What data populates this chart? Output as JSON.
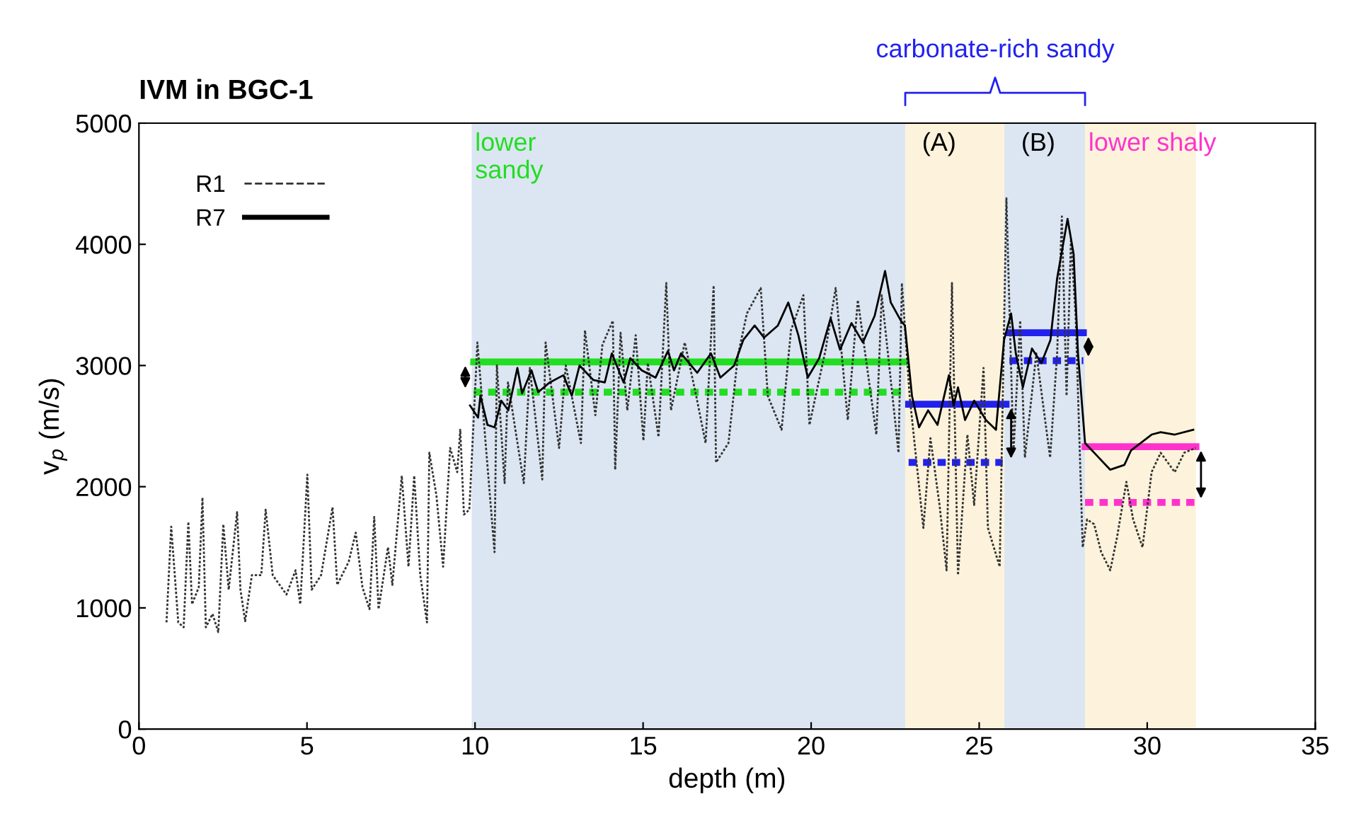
{
  "chart_data": {
    "type": "line",
    "title": "IVM in BGC-1",
    "xlabel": "depth (m)",
    "ylabel": "v$_{p}$ (m/s)",
    "xlim": [
      0,
      35
    ],
    "xticks": [
      0,
      5,
      10,
      15,
      20,
      25,
      30,
      35
    ],
    "ylim": [
      0,
      5000
    ],
    "yticks": [
      0,
      1000,
      2000,
      3000,
      4000,
      5000
    ],
    "grid": false,
    "legend": "top left",
    "marker": "none",
    "annotations": [
      "carbonate-rich sandy"
    ],
    "bands": [
      {
        "axis": "x",
        "from": 9.9,
        "to": 22.8,
        "label": "lower\nsandy",
        "color": "#dce6f2"
      },
      {
        "axis": "x",
        "from": 22.8,
        "to": 25.75,
        "label": "(A)",
        "color": "#fdf3dc"
      },
      {
        "axis": "x",
        "from": 25.75,
        "to": 28.15,
        "label": "(B)",
        "color": "#dce6f2"
      },
      {
        "axis": "x",
        "from": 28.15,
        "to": 31.45,
        "label": "lower shaly",
        "color": "#fdf3dc"
      }
    ],
    "series": [
      {
        "name": "R1",
        "color": "#333333",
        "line_style": "dotted",
        "x": [
          0.82,
          0.96,
          1.17,
          1.33,
          1.47,
          1.58,
          1.78,
          1.89,
          1.99,
          2.19,
          2.36,
          2.51,
          2.67,
          2.92,
          3.02,
          3.16,
          3.36,
          3.64,
          3.77,
          3.98,
          4.39,
          4.66,
          4.8,
          5.01,
          5.14,
          5.42,
          5.76,
          5.9,
          6.24,
          6.45,
          6.65,
          6.86,
          7.0,
          7.13,
          7.41,
          7.54,
          7.82,
          8.02,
          8.19,
          8.37,
          8.57,
          8.64,
          8.85,
          9.05,
          9.26,
          9.47,
          9.56,
          9.67,
          9.83,
          10.07,
          10.58,
          10.65,
          10.88,
          10.98,
          11.45,
          11.63,
          12.0,
          12.1,
          12.5,
          12.7,
          13.15,
          13.27,
          13.58,
          13.79,
          14.1,
          14.17,
          14.33,
          14.53,
          14.78,
          15.01,
          15.14,
          15.46,
          15.69,
          15.83,
          16.24,
          16.58,
          16.86,
          17.1,
          17.17,
          17.54,
          17.82,
          18.09,
          18.5,
          18.71,
          19.12,
          19.4,
          19.77,
          19.95,
          20.43,
          20.73,
          21.09,
          21.39,
          21.94,
          22.1,
          22.6,
          22.7,
          22.93,
          23.34,
          23.55,
          23.82,
          24.03,
          24.19,
          24.37,
          24.65,
          24.85,
          25.13,
          25.26,
          25.61,
          25.81,
          26.02,
          26.22,
          26.36,
          26.7,
          27.11,
          27.32,
          27.46,
          27.6,
          27.73,
          27.87,
          28.08,
          28.21,
          28.42,
          28.63,
          28.9,
          29.1,
          29.38,
          29.58,
          29.86,
          30.13,
          30.4,
          30.82,
          31.1,
          31.44
        ],
        "values": [
          880,
          1670,
          880,
          840,
          1710,
          1030,
          1170,
          1910,
          840,
          950,
          800,
          1690,
          1150,
          1790,
          1150,
          890,
          1270,
          1270,
          1810,
          1270,
          1110,
          1310,
          1030,
          2100,
          1150,
          1270,
          1830,
          1190,
          1380,
          1620,
          1170,
          990,
          1750,
          990,
          1500,
          1190,
          2090,
          1340,
          2090,
          1270,
          880,
          2280,
          1930,
          1340,
          2320,
          2120,
          2470,
          1770,
          1810,
          3190,
          1460,
          3000,
          2030,
          2860,
          2030,
          2980,
          2060,
          3190,
          2320,
          3000,
          2360,
          3290,
          2590,
          3170,
          3370,
          2140,
          3270,
          2630,
          3250,
          2380,
          3020,
          2410,
          3680,
          2630,
          3190,
          2750,
          2360,
          3660,
          2200,
          2360,
          3080,
          3430,
          3640,
          2750,
          2470,
          3290,
          3580,
          2510,
          3130,
          3640,
          2550,
          3540,
          2430,
          3580,
          2280,
          3680,
          2750,
          1660,
          2400,
          1850,
          1310,
          3680,
          1270,
          2430,
          1850,
          2980,
          1660,
          1340,
          4380,
          2280,
          3370,
          2240,
          3100,
          2240,
          3100,
          4230,
          2750,
          4030,
          3410,
          1500,
          1730,
          1690,
          1460,
          1310,
          1580,
          2040,
          1730,
          1500,
          2120,
          2280,
          2120,
          2280,
          2320
        ]
      },
      {
        "name": "R7",
        "color": "#000000",
        "line_style": "solid",
        "x": [
          9.85,
          10.09,
          10.16,
          10.37,
          10.58,
          10.78,
          10.99,
          11.26,
          11.4,
          11.68,
          11.88,
          12.22,
          12.63,
          12.88,
          13.11,
          13.52,
          13.86,
          14.07,
          14.42,
          14.62,
          14.96,
          15.37,
          15.74,
          15.92,
          16.13,
          16.61,
          17.02,
          17.3,
          17.71,
          17.98,
          18.32,
          18.6,
          19.01,
          19.32,
          19.62,
          19.9,
          20.24,
          20.58,
          20.86,
          21.2,
          21.54,
          21.89,
          22.2,
          22.37,
          22.67,
          22.79,
          23.0,
          23.21,
          23.48,
          23.76,
          24.1,
          24.24,
          24.37,
          24.58,
          24.85,
          25.2,
          25.5,
          25.74,
          25.95,
          26.09,
          26.3,
          26.57,
          26.85,
          27.12,
          27.32,
          27.63,
          27.81,
          27.94,
          28.15,
          28.49,
          28.9,
          29.32,
          29.52,
          30.13,
          30.4,
          30.82,
          31.37
        ],
        "values": [
          2670,
          2570,
          2750,
          2510,
          2490,
          2710,
          2630,
          2980,
          2770,
          2960,
          2780,
          2860,
          2920,
          2750,
          3000,
          2880,
          2860,
          3100,
          2860,
          3060,
          2960,
          2900,
          3120,
          2960,
          3100,
          2940,
          3100,
          2900,
          3000,
          3210,
          3330,
          3230,
          3330,
          3520,
          3250,
          2900,
          3060,
          3390,
          3130,
          3350,
          3190,
          3410,
          3780,
          3520,
          3370,
          3330,
          2750,
          2490,
          2630,
          2510,
          2920,
          2670,
          2820,
          2550,
          2710,
          2550,
          2470,
          3210,
          3430,
          3100,
          2820,
          3140,
          3020,
          3210,
          3720,
          4210,
          3920,
          3100,
          2360,
          2260,
          2140,
          2180,
          2300,
          2430,
          2450,
          2430,
          2470
        ]
      },
      {
        "color": "#22dd22",
        "line_style": "solid",
        "x": [
          9.96,
          22.77
        ],
        "values": [
          3030,
          3030
        ]
      },
      {
        "color": "#22dd22",
        "line_style": "dotted",
        "x": [
          9.96,
          22.77
        ],
        "values": [
          2780,
          2780
        ]
      },
      {
        "color": "#2222ee",
        "line_style": "solid",
        "x": [
          22.9,
          25.8
        ],
        "values": [
          2680,
          2680
        ]
      },
      {
        "color": "#2222ee",
        "line_style": "dotted",
        "x": [
          22.9,
          25.7
        ],
        "values": [
          2200,
          2200
        ]
      },
      {
        "color": "#2222ee",
        "line_style": "solid",
        "x": [
          25.9,
          28.1
        ],
        "values": [
          3270,
          3270
        ]
      },
      {
        "color": "#2222ee",
        "line_style": "dotted",
        "x": [
          25.9,
          28.1
        ],
        "values": [
          3040,
          3040
        ]
      },
      {
        "color": "#ff33cc",
        "line_style": "solid",
        "x": [
          28.15,
          31.45
        ],
        "values": [
          2330,
          2330
        ]
      },
      {
        "color": "#ff33cc",
        "line_style": "dotted",
        "x": [
          28.15,
          31.45
        ],
        "values": [
          1870,
          1870
        ]
      }
    ]
  }
}
